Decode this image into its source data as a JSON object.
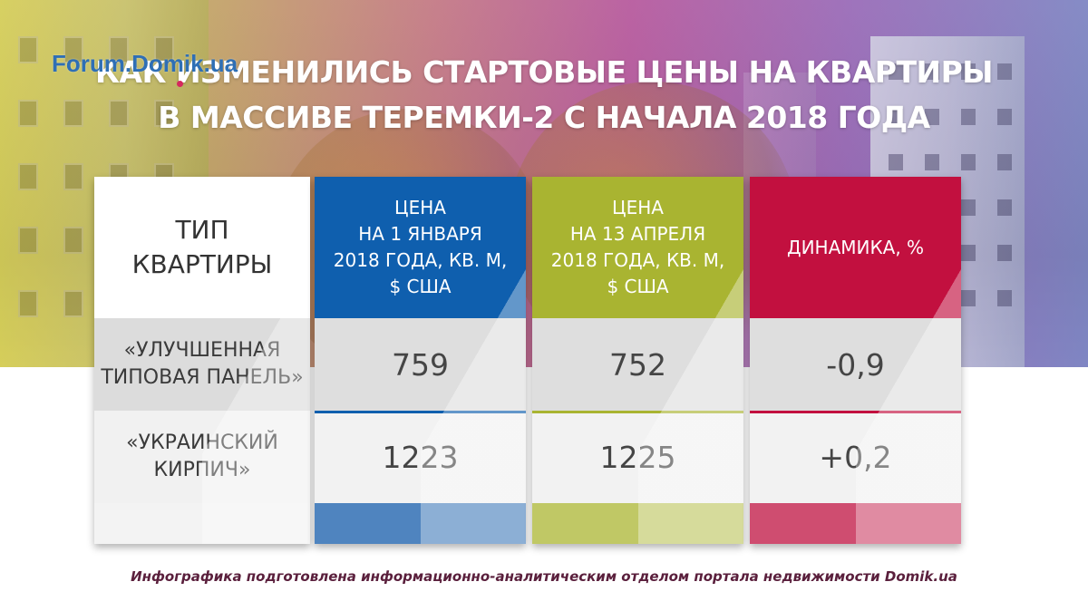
{
  "logo": "Forum.Domik.ua",
  "title": {
    "line1": "КАК ИЗМЕНИЛИСЬ СТАРТОВЫЕ ЦЕНЫ НА КВАРТИРЫ",
    "line2": "В МАССИВЕ ТЕРЕМКИ-2 С НАЧАЛА 2018 ГОДА"
  },
  "table": {
    "headers": {
      "type": [
        "ТИП",
        "КВАРТИРЫ"
      ],
      "jan": [
        "ЦЕНА",
        "НА 1 ЯНВАРЯ",
        "2018 ГОДА, КВ. М,",
        "$ США"
      ],
      "apr": [
        "ЦЕНА",
        "НА 13 АПРЕЛЯ",
        "2018 ГОДА, КВ. М,",
        "$ США"
      ],
      "dyn": [
        "ДИНАМИКА, %"
      ]
    },
    "colors": {
      "jan": "#0f5fae",
      "apr": "#a9b431",
      "dyn": "#c2103f"
    },
    "rows": [
      {
        "type": [
          "«УЛУЧШЕННАЯ",
          "ТИПОВАЯ ПАНЕЛЬ»"
        ],
        "jan": "759",
        "apr": "752",
        "dyn": "-0,9"
      },
      {
        "type": [
          "«УКРАИНСКИЙ",
          "КИРПИЧ»"
        ],
        "jan": "1223",
        "apr": "1225",
        "dyn": "+0,2"
      }
    ]
  },
  "credit": "Инфографика подготовлена информационно-аналитическим отделом портала недвижимости Domik.ua"
}
